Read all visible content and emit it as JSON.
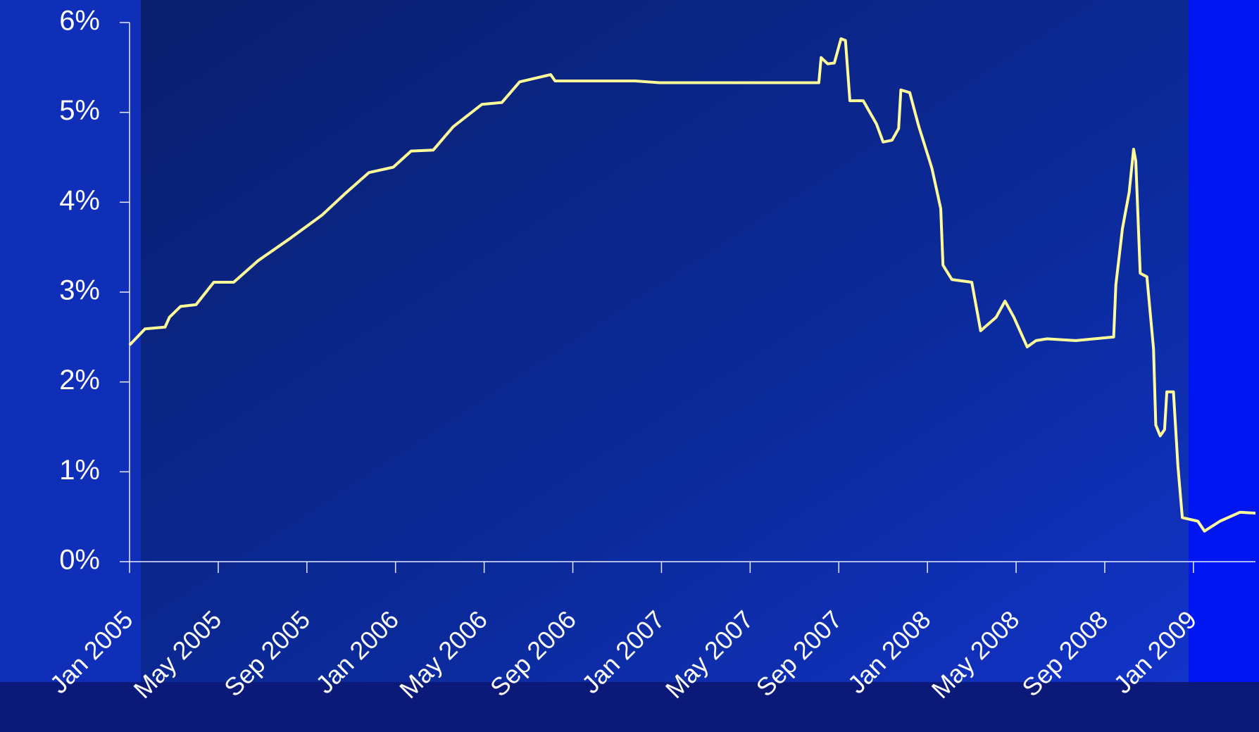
{
  "chart_data": {
    "type": "line",
    "xlim": [
      0,
      50.8
    ],
    "xticks": [
      {
        "value": 0,
        "label": "Jan 2005"
      },
      {
        "value": 4,
        "label": "May 2005"
      },
      {
        "value": 8,
        "label": "Sep 2005"
      },
      {
        "value": 12,
        "label": "Jan 2006"
      },
      {
        "value": 16,
        "label": "May 2006"
      },
      {
        "value": 20,
        "label": "Sep 2006"
      },
      {
        "value": 24,
        "label": "Jan 2007"
      },
      {
        "value": 28,
        "label": "May 2007"
      },
      {
        "value": 32,
        "label": "Sep 2007"
      },
      {
        "value": 36,
        "label": "Jan 2008"
      },
      {
        "value": 40,
        "label": "May 2008"
      },
      {
        "value": 44,
        "label": "Sep 2008"
      },
      {
        "value": 48,
        "label": "Jan 2009"
      }
    ],
    "ylim": [
      0,
      6
    ],
    "yticks": [
      {
        "value": 0,
        "label": "0%"
      },
      {
        "value": 1,
        "label": "1%"
      },
      {
        "value": 2,
        "label": "2%"
      },
      {
        "value": 3,
        "label": "3%"
      },
      {
        "value": 4,
        "label": "4%"
      },
      {
        "value": 5,
        "label": "5%"
      },
      {
        "value": 6,
        "label": "6%"
      }
    ],
    "x": [
      0,
      0.7,
      1.6,
      1.8,
      2.3,
      3.0,
      3.8,
      4.7,
      5.8,
      7.2,
      8.7,
      9.7,
      10.8,
      11.9,
      12.7,
      13.7,
      14.6,
      15.9,
      16.8,
      17.6,
      19.0,
      19.2,
      22.8,
      23.9,
      31.1,
      31.2,
      31.5,
      31.8,
      32.1,
      32.3,
      32.5,
      33.1,
      33.7,
      34.0,
      34.4,
      34.7,
      34.8,
      35.2,
      35.6,
      36.2,
      36.6,
      36.7,
      37.1,
      38.0,
      38.4,
      39.1,
      39.5,
      39.9,
      40.5,
      40.9,
      41.4,
      42.7,
      44.4,
      44.5,
      44.8,
      45.1,
      45.3,
      45.4,
      45.6,
      45.9,
      46.2,
      46.3,
      46.5,
      46.7,
      46.8,
      47.1,
      47.3,
      47.5,
      48.2,
      48.5,
      49.2,
      50.1,
      50.8
    ],
    "series": [
      {
        "color": "#ffff99",
        "values": [
          2.41,
          2.59,
          2.61,
          2.72,
          2.84,
          2.86,
          3.11,
          3.11,
          3.35,
          3.59,
          3.86,
          4.09,
          4.33,
          4.39,
          4.57,
          4.58,
          4.84,
          5.09,
          5.11,
          5.34,
          5.42,
          5.35,
          5.35,
          5.33,
          5.33,
          5.61,
          5.54,
          5.55,
          5.82,
          5.8,
          5.13,
          5.13,
          4.87,
          4.67,
          4.69,
          4.82,
          5.25,
          5.22,
          4.85,
          4.38,
          3.93,
          3.3,
          3.14,
          3.11,
          2.57,
          2.72,
          2.9,
          2.72,
          2.39,
          2.46,
          2.48,
          2.46,
          2.5,
          3.08,
          3.71,
          4.11,
          4.59,
          4.46,
          3.21,
          3.17,
          2.37,
          1.52,
          1.4,
          1.47,
          1.89,
          1.89,
          1.07,
          0.49,
          0.45,
          0.34,
          0.45,
          0.55,
          0.54
        ]
      }
    ]
  }
}
